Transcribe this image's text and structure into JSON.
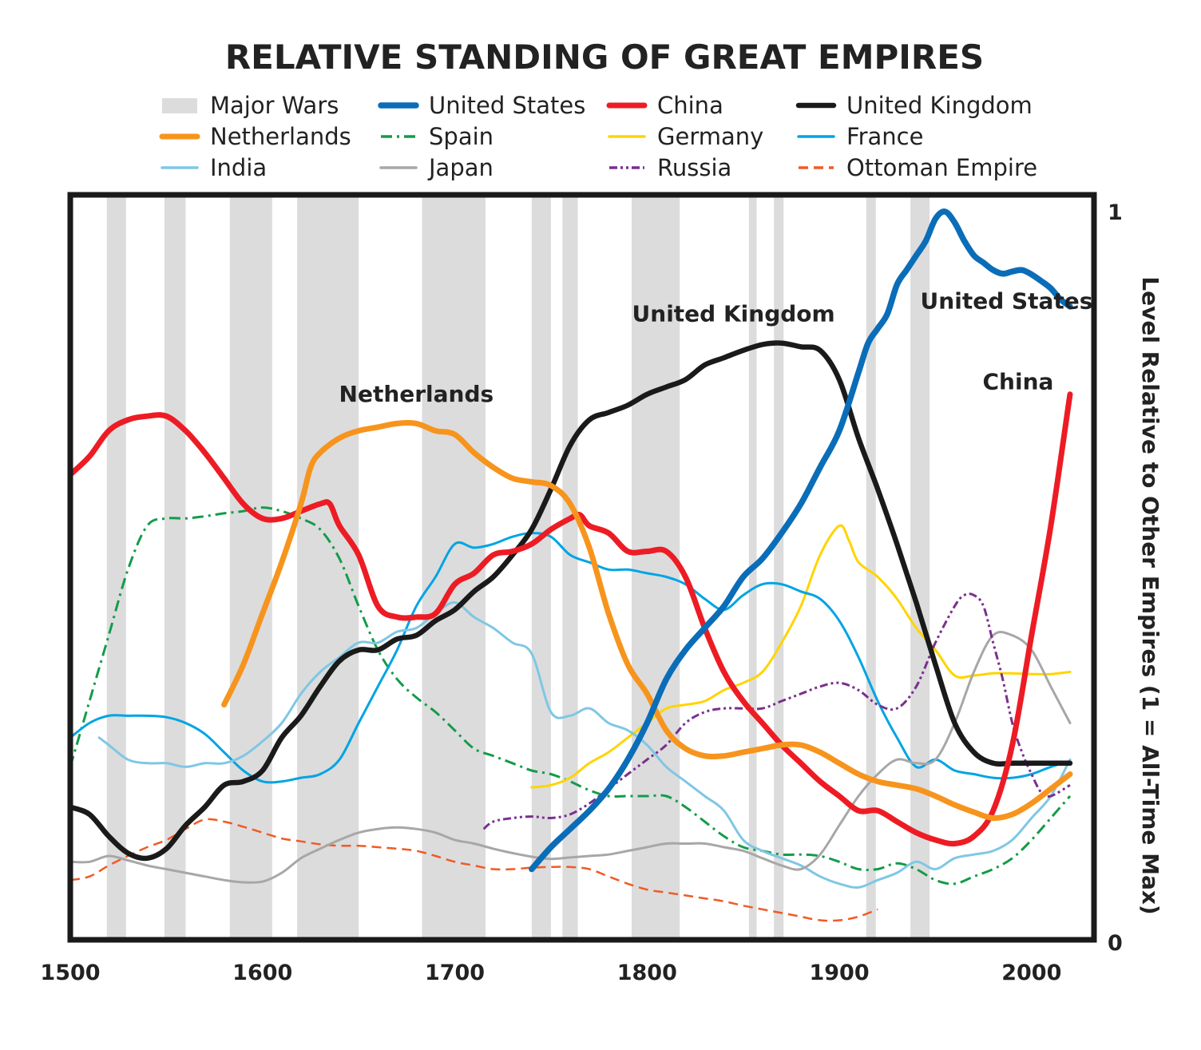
{
  "chart_data": {
    "type": "line",
    "title": "RELATIVE STANDING OF GREAT EMPIRES",
    "ylabel": "Level Relative to Other Empires (1 = All-Time Max)",
    "xlim": [
      1500,
      2025
    ],
    "ylim": [
      0,
      1
    ],
    "x_ticks": [
      "1500",
      "1600",
      "1700",
      "1800",
      "1900",
      "2000"
    ],
    "y_ticks": [
      "0",
      "1"
    ],
    "legend_placement": "top",
    "wars_label": "Major Wars",
    "wars_color": "#dcdcdd",
    "major_wars": [
      [
        1519,
        1529
      ],
      [
        1549,
        1560
      ],
      [
        1583,
        1605
      ],
      [
        1618,
        1650
      ],
      [
        1683,
        1716
      ],
      [
        1740,
        1750
      ],
      [
        1756,
        1764
      ],
      [
        1792,
        1817
      ],
      [
        1853,
        1857
      ],
      [
        1866,
        1871
      ],
      [
        1914,
        1919
      ],
      [
        1937,
        1947
      ]
    ],
    "annotations": [
      {
        "text": "Netherlands",
        "x": 1680,
        "y": 0.74
      },
      {
        "text": "United Kingdom",
        "x": 1845,
        "y": 0.85
      },
      {
        "text": "United States",
        "x": 1987,
        "y": 0.867
      },
      {
        "text": "China",
        "x": 1993,
        "y": 0.757
      }
    ],
    "series": [
      {
        "name": "United States",
        "color": "#0a6db8",
        "width": 7.5,
        "dash": "",
        "x": [
          1740,
          1750,
          1760,
          1770,
          1780,
          1790,
          1800,
          1810,
          1820,
          1830,
          1840,
          1850,
          1860,
          1870,
          1880,
          1890,
          1900,
          1910,
          1915,
          1920,
          1925,
          1930,
          1935,
          1940,
          1945,
          1950,
          1955,
          1960,
          1965,
          1970,
          1975,
          1980,
          1985,
          1990,
          1995,
          2000,
          2005,
          2010,
          2015,
          2020
        ],
        "y": [
          0.1,
          0.13,
          0.155,
          0.18,
          0.21,
          0.25,
          0.3,
          0.36,
          0.4,
          0.43,
          0.46,
          0.5,
          0.525,
          0.56,
          0.6,
          0.65,
          0.7,
          0.78,
          0.82,
          0.84,
          0.86,
          0.9,
          0.92,
          0.94,
          0.96,
          0.99,
          1.0,
          0.985,
          0.96,
          0.94,
          0.93,
          0.92,
          0.915,
          0.918,
          0.92,
          0.914,
          0.905,
          0.895,
          0.88,
          0.87
        ]
      },
      {
        "name": "China",
        "color": "#ed1c24",
        "width": 7,
        "dash": "",
        "x": [
          1500,
          1510,
          1520,
          1530,
          1540,
          1550,
          1560,
          1570,
          1580,
          1590,
          1600,
          1610,
          1620,
          1630,
          1635,
          1640,
          1650,
          1660,
          1670,
          1680,
          1690,
          1700,
          1710,
          1720,
          1730,
          1740,
          1750,
          1760,
          1765,
          1770,
          1780,
          1790,
          1800,
          1810,
          1820,
          1830,
          1840,
          1850,
          1860,
          1870,
          1880,
          1890,
          1900,
          1910,
          1920,
          1930,
          1940,
          1950,
          1960,
          1970,
          1980,
          1990,
          2000,
          2010,
          2020
        ],
        "y": [
          0.64,
          0.665,
          0.7,
          0.715,
          0.72,
          0.72,
          0.7,
          0.67,
          0.635,
          0.6,
          0.58,
          0.58,
          0.59,
          0.6,
          0.6,
          0.57,
          0.53,
          0.46,
          0.445,
          0.445,
          0.45,
          0.49,
          0.505,
          0.53,
          0.535,
          0.545,
          0.565,
          0.58,
          0.585,
          0.57,
          0.56,
          0.535,
          0.535,
          0.535,
          0.5,
          0.43,
          0.37,
          0.33,
          0.3,
          0.27,
          0.245,
          0.22,
          0.2,
          0.18,
          0.18,
          0.165,
          0.15,
          0.14,
          0.135,
          0.145,
          0.18,
          0.27,
          0.42,
          0.57,
          0.75
        ]
      },
      {
        "name": "United Kingdom",
        "color": "#1a1a1a",
        "width": 6.5,
        "dash": "",
        "x": [
          1500,
          1510,
          1520,
          1530,
          1540,
          1550,
          1560,
          1570,
          1580,
          1590,
          1600,
          1610,
          1620,
          1630,
          1640,
          1650,
          1660,
          1670,
          1680,
          1690,
          1700,
          1710,
          1720,
          1730,
          1740,
          1750,
          1760,
          1770,
          1780,
          1790,
          1800,
          1810,
          1820,
          1830,
          1840,
          1850,
          1860,
          1870,
          1880,
          1890,
          1900,
          1910,
          1920,
          1930,
          1940,
          1950,
          1960,
          1970,
          1980,
          1990,
          2000,
          2010,
          2020
        ],
        "y": [
          0.185,
          0.175,
          0.145,
          0.122,
          0.115,
          0.128,
          0.16,
          0.185,
          0.215,
          0.22,
          0.235,
          0.28,
          0.31,
          0.35,
          0.385,
          0.4,
          0.4,
          0.415,
          0.42,
          0.44,
          0.455,
          0.48,
          0.5,
          0.53,
          0.565,
          0.62,
          0.68,
          0.715,
          0.725,
          0.735,
          0.75,
          0.76,
          0.77,
          0.79,
          0.8,
          0.81,
          0.818,
          0.82,
          0.815,
          0.81,
          0.77,
          0.69,
          0.62,
          0.545,
          0.465,
          0.38,
          0.3,
          0.26,
          0.245,
          0.245,
          0.245,
          0.245,
          0.245
        ]
      },
      {
        "name": "Netherlands",
        "color": "#f7941d",
        "width": 7,
        "dash": "",
        "x": [
          1580,
          1590,
          1600,
          1610,
          1620,
          1625,
          1630,
          1640,
          1650,
          1660,
          1670,
          1680,
          1690,
          1700,
          1710,
          1720,
          1730,
          1740,
          1750,
          1760,
          1770,
          1780,
          1790,
          1800,
          1810,
          1820,
          1830,
          1840,
          1850,
          1860,
          1870,
          1880,
          1890,
          1900,
          1910,
          1920,
          1930,
          1940,
          1950,
          1960,
          1970,
          1980,
          1990,
          2000,
          2010,
          2020
        ],
        "y": [
          0.325,
          0.38,
          0.45,
          0.52,
          0.6,
          0.65,
          0.67,
          0.69,
          0.7,
          0.705,
          0.71,
          0.71,
          0.7,
          0.695,
          0.67,
          0.65,
          0.635,
          0.63,
          0.625,
          0.6,
          0.54,
          0.45,
          0.38,
          0.34,
          0.29,
          0.265,
          0.255,
          0.255,
          0.26,
          0.265,
          0.27,
          0.27,
          0.26,
          0.245,
          0.23,
          0.22,
          0.215,
          0.21,
          0.2,
          0.188,
          0.178,
          0.17,
          0.175,
          0.19,
          0.21,
          0.23
        ]
      },
      {
        "name": "Spain",
        "color": "#139c48",
        "width": 3,
        "dash": "14 6 3 6",
        "x": [
          1500,
          1510,
          1520,
          1530,
          1540,
          1550,
          1560,
          1570,
          1580,
          1590,
          1600,
          1610,
          1620,
          1630,
          1640,
          1650,
          1660,
          1670,
          1680,
          1690,
          1700,
          1710,
          1720,
          1730,
          1740,
          1750,
          1760,
          1770,
          1780,
          1790,
          1800,
          1810,
          1820,
          1830,
          1840,
          1850,
          1860,
          1870,
          1880,
          1890,
          1900,
          1910,
          1920,
          1930,
          1940,
          1950,
          1960,
          1970,
          1980,
          1990,
          2000,
          2010,
          2020
        ],
        "y": [
          0.24,
          0.33,
          0.42,
          0.51,
          0.57,
          0.58,
          0.58,
          0.583,
          0.587,
          0.59,
          0.595,
          0.59,
          0.58,
          0.565,
          0.525,
          0.46,
          0.4,
          0.36,
          0.335,
          0.315,
          0.29,
          0.265,
          0.255,
          0.245,
          0.235,
          0.23,
          0.22,
          0.208,
          0.2,
          0.2,
          0.2,
          0.2,
          0.185,
          0.165,
          0.145,
          0.13,
          0.125,
          0.12,
          0.12,
          0.118,
          0.11,
          0.1,
          0.1,
          0.108,
          0.1,
          0.085,
          0.08,
          0.09,
          0.1,
          0.115,
          0.14,
          0.17,
          0.2
        ]
      },
      {
        "name": "Germany",
        "color": "#ffd400",
        "width": 3,
        "dash": "",
        "x": [
          1740,
          1750,
          1760,
          1770,
          1780,
          1790,
          1800,
          1810,
          1820,
          1830,
          1840,
          1850,
          1860,
          1870,
          1880,
          1890,
          1900,
          1905,
          1910,
          1920,
          1930,
          1940,
          1950,
          1960,
          1970,
          1980,
          1990,
          2000,
          2010,
          2020
        ],
        "y": [
          0.212,
          0.215,
          0.225,
          0.245,
          0.26,
          0.28,
          0.3,
          0.32,
          0.325,
          0.33,
          0.345,
          0.355,
          0.37,
          0.41,
          0.46,
          0.53,
          0.57,
          0.55,
          0.52,
          0.5,
          0.47,
          0.43,
          0.4,
          0.365,
          0.365,
          0.368,
          0.368,
          0.367,
          0.367,
          0.37
        ]
      },
      {
        "name": "France",
        "color": "#00a4e4",
        "width": 3,
        "dash": "",
        "x": [
          1500,
          1510,
          1520,
          1530,
          1540,
          1550,
          1560,
          1570,
          1580,
          1590,
          1600,
          1610,
          1620,
          1630,
          1640,
          1650,
          1660,
          1670,
          1680,
          1690,
          1700,
          1710,
          1720,
          1730,
          1740,
          1750,
          1760,
          1770,
          1780,
          1790,
          1800,
          1810,
          1820,
          1830,
          1840,
          1850,
          1860,
          1870,
          1880,
          1890,
          1900,
          1910,
          1920,
          1930,
          1940,
          1950,
          1960,
          1970,
          1980,
          1990,
          2000,
          2010,
          2020
        ],
        "y": [
          0.28,
          0.3,
          0.31,
          0.31,
          0.31,
          0.308,
          0.3,
          0.285,
          0.26,
          0.235,
          0.22,
          0.22,
          0.225,
          0.23,
          0.25,
          0.3,
          0.35,
          0.4,
          0.46,
          0.5,
          0.545,
          0.54,
          0.545,
          0.555,
          0.56,
          0.555,
          0.53,
          0.52,
          0.51,
          0.51,
          0.505,
          0.5,
          0.49,
          0.47,
          0.455,
          0.475,
          0.49,
          0.49,
          0.48,
          0.47,
          0.44,
          0.39,
          0.33,
          0.28,
          0.24,
          0.25,
          0.235,
          0.23,
          0.225,
          0.225,
          0.23,
          0.24,
          0.248
        ]
      },
      {
        "name": "India",
        "color": "#7fc7e4",
        "width": 3,
        "dash": "",
        "x": [
          1515,
          1520,
          1530,
          1540,
          1550,
          1560,
          1570,
          1580,
          1590,
          1600,
          1610,
          1620,
          1630,
          1640,
          1650,
          1660,
          1670,
          1680,
          1690,
          1700,
          1710,
          1720,
          1730,
          1740,
          1750,
          1760,
          1770,
          1780,
          1790,
          1800,
          1810,
          1820,
          1830,
          1840,
          1850,
          1860,
          1870,
          1880,
          1890,
          1900,
          1910,
          1920,
          1930,
          1940,
          1950,
          1960,
          1970,
          1980,
          1990,
          2000,
          2010,
          2020
        ],
        "y": [
          0.28,
          0.27,
          0.25,
          0.245,
          0.245,
          0.24,
          0.245,
          0.245,
          0.255,
          0.275,
          0.3,
          0.34,
          0.37,
          0.39,
          0.41,
          0.41,
          0.425,
          0.43,
          0.45,
          0.465,
          0.445,
          0.43,
          0.41,
          0.395,
          0.315,
          0.31,
          0.32,
          0.3,
          0.29,
          0.27,
          0.24,
          0.22,
          0.2,
          0.18,
          0.14,
          0.125,
          0.115,
          0.105,
          0.09,
          0.08,
          0.075,
          0.085,
          0.095,
          0.11,
          0.1,
          0.115,
          0.12,
          0.125,
          0.14,
          0.17,
          0.2,
          0.25
        ]
      },
      {
        "name": "Japan",
        "color": "#a7a7a7",
        "width": 3,
        "dash": "",
        "x": [
          1500,
          1510,
          1520,
          1530,
          1540,
          1550,
          1560,
          1570,
          1580,
          1590,
          1600,
          1610,
          1620,
          1630,
          1640,
          1650,
          1660,
          1670,
          1680,
          1690,
          1700,
          1710,
          1720,
          1730,
          1740,
          1750,
          1760,
          1770,
          1780,
          1790,
          1800,
          1810,
          1820,
          1830,
          1840,
          1850,
          1860,
          1870,
          1880,
          1890,
          1900,
          1910,
          1920,
          1930,
          1940,
          1950,
          1960,
          1970,
          1980,
          1990,
          2000,
          2010,
          2020
        ],
        "y": [
          0.11,
          0.11,
          0.118,
          0.112,
          0.105,
          0.1,
          0.095,
          0.09,
          0.085,
          0.082,
          0.083,
          0.095,
          0.115,
          0.128,
          0.14,
          0.15,
          0.155,
          0.157,
          0.155,
          0.15,
          0.14,
          0.135,
          0.128,
          0.122,
          0.117,
          0.114,
          0.116,
          0.118,
          0.12,
          0.125,
          0.13,
          0.135,
          0.135,
          0.135,
          0.13,
          0.125,
          0.115,
          0.105,
          0.1,
          0.12,
          0.16,
          0.2,
          0.23,
          0.25,
          0.245,
          0.25,
          0.3,
          0.37,
          0.42,
          0.42,
          0.4,
          0.35,
          0.3
        ]
      },
      {
        "name": "Russia",
        "color": "#7b2f8e",
        "width": 3,
        "dash": "10 4 3 4 3 4",
        "x": [
          1715,
          1720,
          1730,
          1740,
          1750,
          1760,
          1770,
          1780,
          1790,
          1800,
          1810,
          1820,
          1830,
          1840,
          1850,
          1860,
          1870,
          1880,
          1890,
          1900,
          1910,
          1920,
          1930,
          1940,
          1950,
          1960,
          1965,
          1970,
          1975,
          1980,
          1985,
          1990,
          1995,
          2000,
          2005,
          2010,
          2020
        ],
        "y": [
          0.155,
          0.165,
          0.17,
          0.172,
          0.17,
          0.175,
          0.19,
          0.21,
          0.23,
          0.25,
          0.27,
          0.3,
          0.315,
          0.32,
          0.32,
          0.32,
          0.33,
          0.34,
          0.35,
          0.355,
          0.345,
          0.325,
          0.32,
          0.35,
          0.41,
          0.46,
          0.475,
          0.475,
          0.46,
          0.41,
          0.36,
          0.3,
          0.26,
          0.23,
          0.205,
          0.2,
          0.215
        ]
      },
      {
        "name": "Ottoman Empire",
        "color": "#f15a24",
        "width": 2.5,
        "dash": "12 7",
        "x": [
          1500,
          1510,
          1520,
          1530,
          1540,
          1550,
          1560,
          1570,
          1580,
          1590,
          1600,
          1610,
          1620,
          1630,
          1640,
          1650,
          1660,
          1670,
          1680,
          1690,
          1700,
          1710,
          1720,
          1730,
          1740,
          1750,
          1760,
          1770,
          1780,
          1790,
          1800,
          1810,
          1820,
          1830,
          1840,
          1850,
          1860,
          1870,
          1880,
          1890,
          1900,
          1910,
          1920
        ],
        "y": [
          0.085,
          0.09,
          0.105,
          0.118,
          0.13,
          0.14,
          0.155,
          0.168,
          0.165,
          0.158,
          0.15,
          0.142,
          0.138,
          0.134,
          0.132,
          0.132,
          0.13,
          0.128,
          0.125,
          0.118,
          0.11,
          0.105,
          0.1,
          0.1,
          0.102,
          0.103,
          0.103,
          0.1,
          0.09,
          0.08,
          0.072,
          0.068,
          0.064,
          0.06,
          0.056,
          0.05,
          0.045,
          0.04,
          0.035,
          0.03,
          0.03,
          0.035,
          0.045
        ]
      }
    ]
  }
}
